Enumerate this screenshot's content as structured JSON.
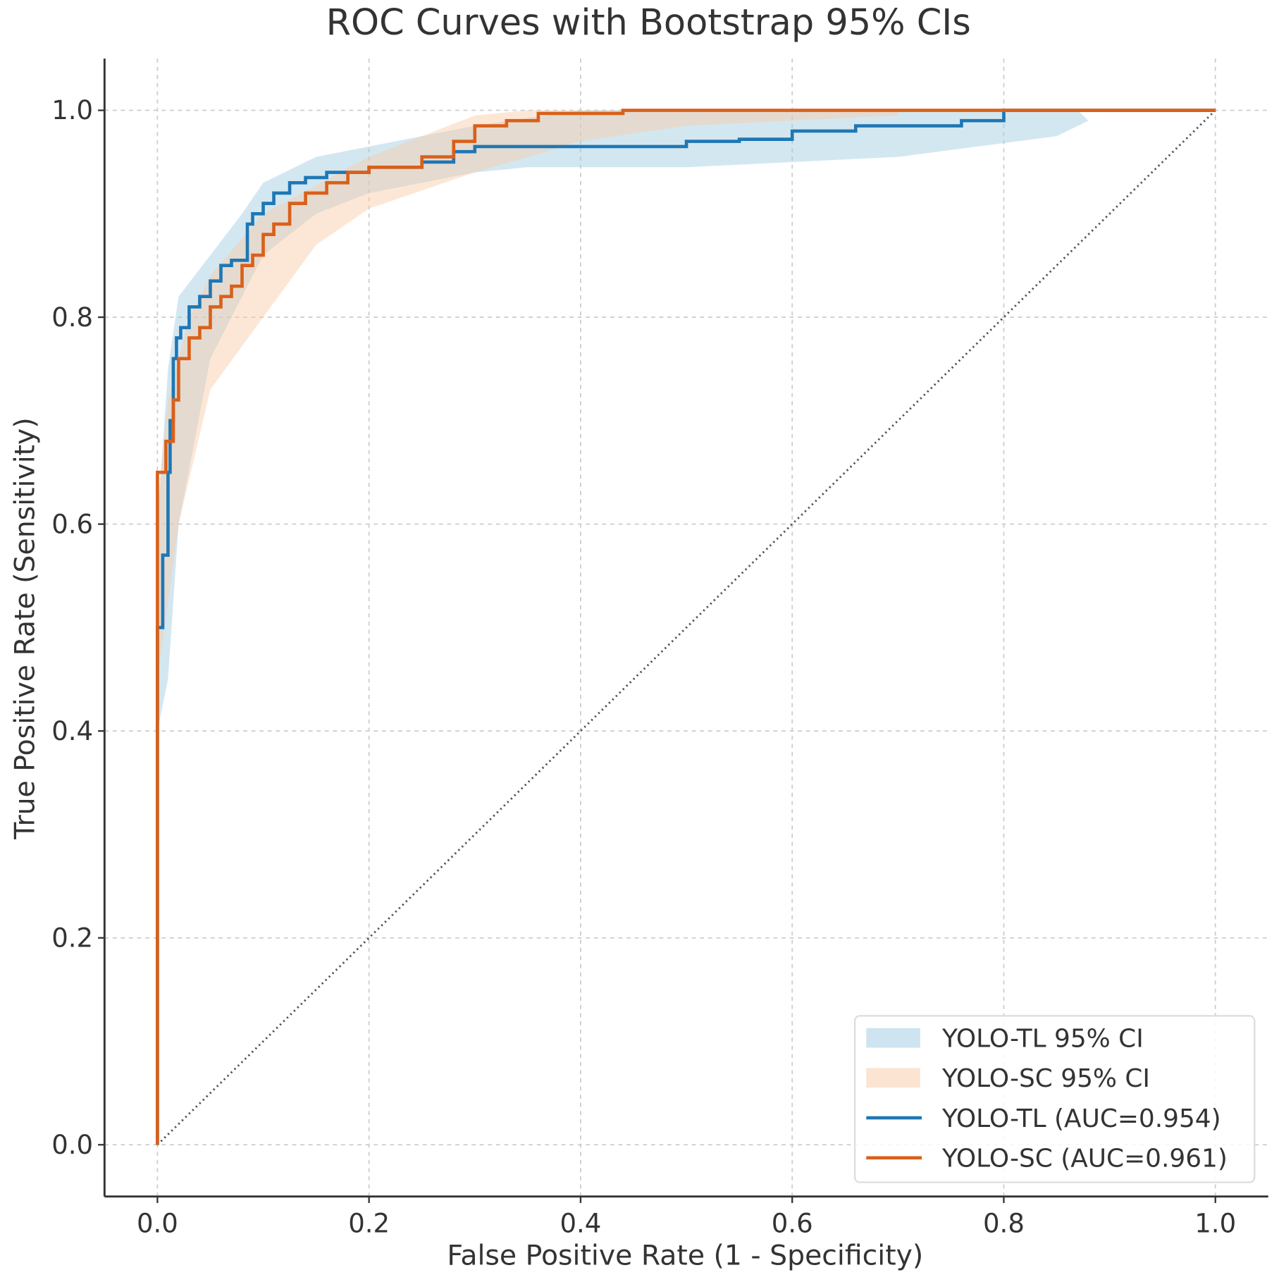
{
  "chart_data": {
    "type": "line",
    "title": "ROC Curves with Bootstrap 95% CIs",
    "xlabel": "False Positive Rate (1 - Specificity)",
    "ylabel": "True Positive Rate (Sensitivity)",
    "xlim": [
      -0.05,
      1.05
    ],
    "ylim": [
      -0.05,
      1.05
    ],
    "xticks": [
      "0.0",
      "0.2",
      "0.4",
      "0.6",
      "0.8",
      "1.0"
    ],
    "yticks": [
      "0.0",
      "0.2",
      "0.4",
      "0.6",
      "0.8",
      "1.0"
    ],
    "grid": true,
    "legend_position": "lower-right",
    "bands": [
      {
        "name": "YOLO-TL 95% CI",
        "color": "#9ecae1",
        "upper": [
          [
            0,
            0.6
          ],
          [
            0.01,
            0.75
          ],
          [
            0.02,
            0.82
          ],
          [
            0.05,
            0.86
          ],
          [
            0.08,
            0.9
          ],
          [
            0.1,
            0.93
          ],
          [
            0.15,
            0.955
          ],
          [
            0.2,
            0.965
          ],
          [
            0.3,
            0.985
          ],
          [
            0.4,
            1.0
          ],
          [
            0.87,
            1.0
          ]
        ],
        "lower": [
          [
            0,
            0.4
          ],
          [
            0.01,
            0.45
          ],
          [
            0.02,
            0.6
          ],
          [
            0.05,
            0.76
          ],
          [
            0.1,
            0.86
          ],
          [
            0.15,
            0.9
          ],
          [
            0.2,
            0.92
          ],
          [
            0.3,
            0.94
          ],
          [
            0.35,
            0.945
          ],
          [
            0.5,
            0.945
          ],
          [
            0.7,
            0.955
          ],
          [
            0.85,
            0.975
          ],
          [
            0.88,
            0.99
          ]
        ]
      },
      {
        "name": "YOLO-SC 95% CI",
        "color": "#f8c9a6",
        "upper": [
          [
            0,
            0.62
          ],
          [
            0.01,
            0.72
          ],
          [
            0.03,
            0.8
          ],
          [
            0.05,
            0.84
          ],
          [
            0.1,
            0.9
          ],
          [
            0.2,
            0.955
          ],
          [
            0.3,
            0.995
          ],
          [
            0.35,
            1.0
          ],
          [
            0.7,
            1.0
          ]
        ],
        "lower": [
          [
            0,
            0.45
          ],
          [
            0.02,
            0.6
          ],
          [
            0.05,
            0.73
          ],
          [
            0.1,
            0.8
          ],
          [
            0.15,
            0.87
          ],
          [
            0.2,
            0.905
          ],
          [
            0.3,
            0.94
          ],
          [
            0.4,
            0.97
          ],
          [
            0.5,
            0.985
          ],
          [
            0.7,
            0.995
          ]
        ]
      }
    ],
    "series": [
      {
        "name": "YOLO-TL (AUC=0.954)",
        "color": "#1f77b4",
        "points": [
          [
            0,
            0
          ],
          [
            0,
            0.45
          ],
          [
            0.005,
            0.5
          ],
          [
            0.01,
            0.57
          ],
          [
            0.012,
            0.65
          ],
          [
            0.015,
            0.7
          ],
          [
            0.018,
            0.76
          ],
          [
            0.022,
            0.78
          ],
          [
            0.03,
            0.79
          ],
          [
            0.04,
            0.81
          ],
          [
            0.05,
            0.82
          ],
          [
            0.06,
            0.835
          ],
          [
            0.07,
            0.85
          ],
          [
            0.085,
            0.855
          ],
          [
            0.09,
            0.89
          ],
          [
            0.1,
            0.9
          ],
          [
            0.11,
            0.91
          ],
          [
            0.125,
            0.92
          ],
          [
            0.14,
            0.93
          ],
          [
            0.16,
            0.935
          ],
          [
            0.2,
            0.94
          ],
          [
            0.25,
            0.945
          ],
          [
            0.28,
            0.95
          ],
          [
            0.3,
            0.96
          ],
          [
            0.33,
            0.965
          ],
          [
            0.5,
            0.965
          ],
          [
            0.55,
            0.97
          ],
          [
            0.6,
            0.972
          ],
          [
            0.66,
            0.98
          ],
          [
            0.7,
            0.985
          ],
          [
            0.76,
            0.985
          ],
          [
            0.8,
            0.99
          ],
          [
            0.86,
            1.0
          ],
          [
            1,
            1
          ]
        ]
      },
      {
        "name": "YOLO-SC (AUC=0.961)",
        "color": "#d9601a",
        "points": [
          [
            0,
            0
          ],
          [
            0,
            0.6
          ],
          [
            0.008,
            0.65
          ],
          [
            0.015,
            0.68
          ],
          [
            0.02,
            0.72
          ],
          [
            0.03,
            0.76
          ],
          [
            0.04,
            0.78
          ],
          [
            0.05,
            0.79
          ],
          [
            0.06,
            0.81
          ],
          [
            0.07,
            0.82
          ],
          [
            0.08,
            0.83
          ],
          [
            0.09,
            0.85
          ],
          [
            0.1,
            0.86
          ],
          [
            0.11,
            0.88
          ],
          [
            0.125,
            0.89
          ],
          [
            0.14,
            0.91
          ],
          [
            0.16,
            0.92
          ],
          [
            0.18,
            0.93
          ],
          [
            0.2,
            0.94
          ],
          [
            0.25,
            0.945
          ],
          [
            0.28,
            0.955
          ],
          [
            0.3,
            0.97
          ],
          [
            0.33,
            0.985
          ],
          [
            0.36,
            0.99
          ],
          [
            0.44,
            0.997
          ],
          [
            0.67,
            1.0
          ],
          [
            1,
            1
          ]
        ]
      }
    ],
    "diagonal": {
      "from": [
        0,
        0
      ],
      "to": [
        1,
        1
      ],
      "style": "dotted",
      "color": "#555555"
    },
    "legend": [
      "YOLO-TL 95% CI",
      "YOLO-SC 95% CI",
      "YOLO-TL (AUC=0.954)",
      "YOLO-SC (AUC=0.961)"
    ]
  }
}
